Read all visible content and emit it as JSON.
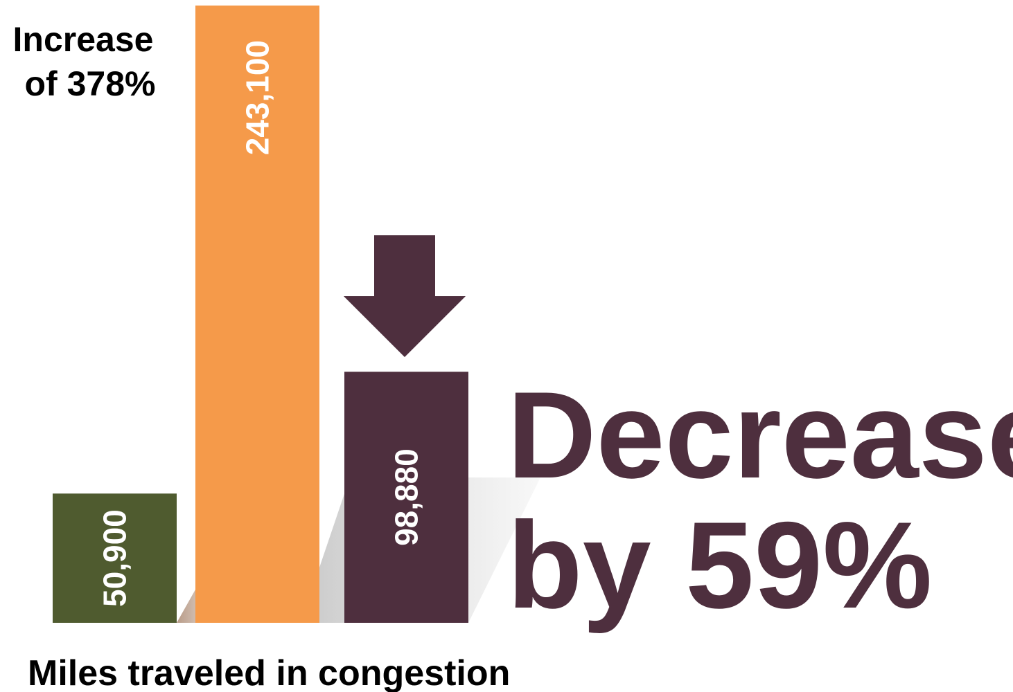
{
  "chart_data": {
    "type": "bar",
    "values": [
      50900,
      243100,
      98880
    ],
    "value_labels": [
      "50,900",
      "243,100",
      "98,880"
    ],
    "colors": [
      "#4f5b2f",
      "#f59a4a",
      "#4e2f3e"
    ],
    "xlabel": "Miles traveled in congestion",
    "ylim": [
      0,
      243100
    ],
    "grid": false,
    "legend": "none",
    "annotations": {
      "increase_line1": "Increase",
      "increase_line2": "of 378%",
      "decrease_line1": "Decrease",
      "decrease_line2": "by 59%"
    },
    "arrow": {
      "icon": "arrow-down-icon",
      "color": "#4e2f3e"
    }
  }
}
